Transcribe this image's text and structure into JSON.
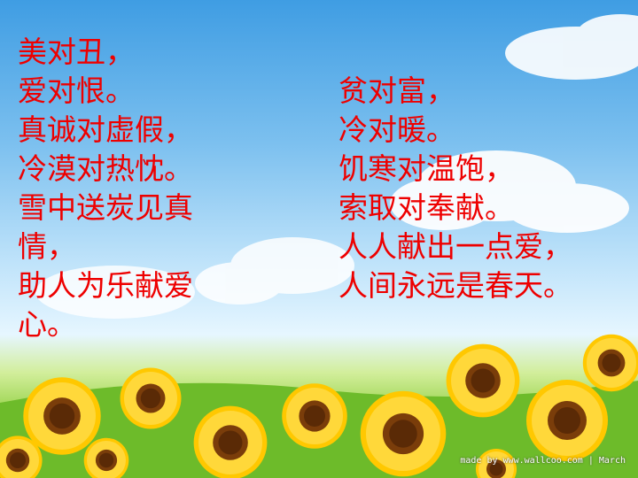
{
  "slide": {
    "left_column": [
      "美对丑，",
      "爱对恨。",
      "真诚对虚假，",
      "冷漠对热忱。",
      "雪中送炭见真",
      "情，",
      "助人为乐献爱",
      "心。"
    ],
    "right_column": [
      "贫对富，",
      "冷对暖。",
      "饥寒对温饱，",
      "索取对奉献。",
      "人人献出一点爱，",
      "人间永远是春天。"
    ],
    "watermark": "made by www.wallcoo.com | March"
  },
  "colors": {
    "text": "#ee0000",
    "sky": "#7cc0ef",
    "grass": "#5fae22",
    "petal": "#ffcc00",
    "center": "#7a3d0a"
  },
  "icons": [
    "cloud-icon",
    "sunflower-icon"
  ]
}
